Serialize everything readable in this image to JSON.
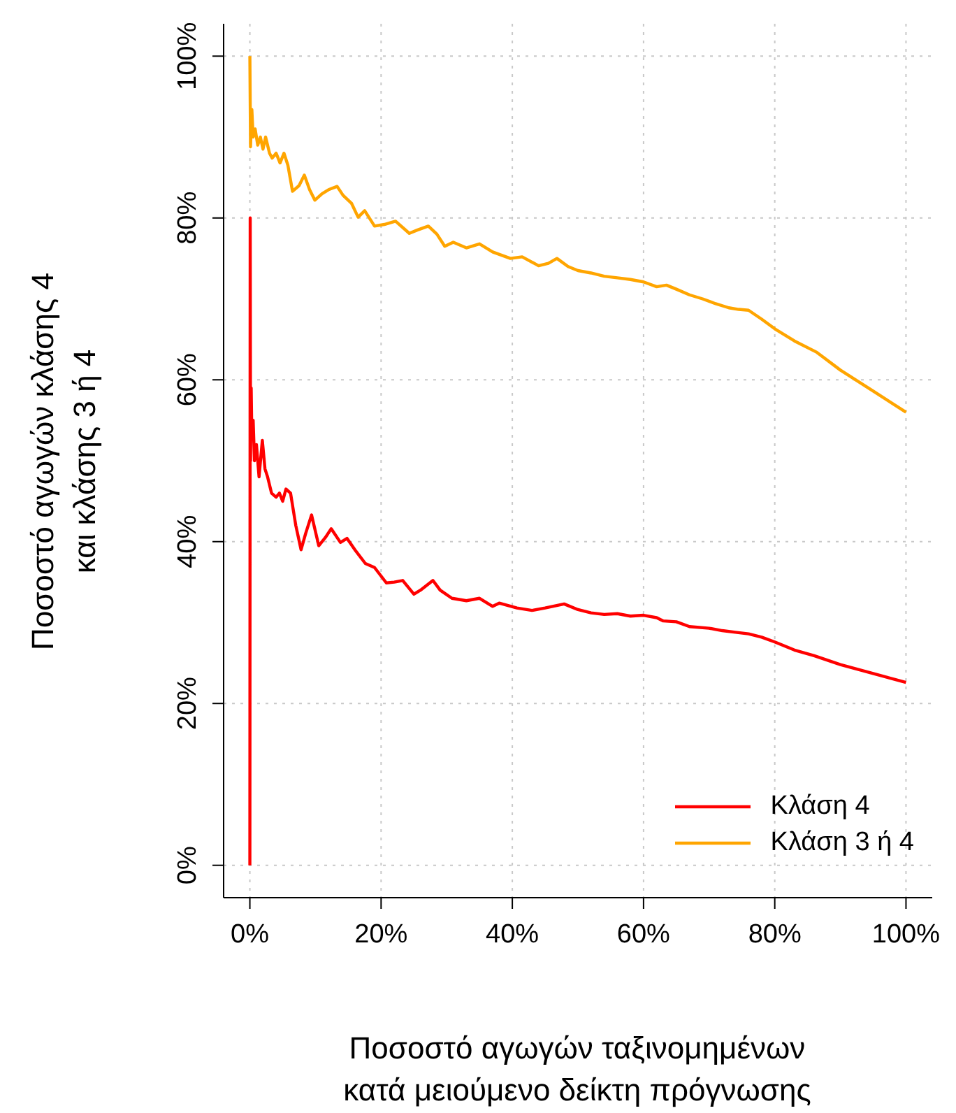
{
  "chart_data": {
    "type": "line",
    "xlabel": "Ποσοστό αγωγών ταξινομημένων\nκατά μειούμενο δείκτη πρόγνωσης",
    "ylabel": "Ποσοστό αγωγών κλάσης 4\nκαι κλάσης 3 ή 4",
    "xlim": [
      -4,
      104
    ],
    "ylim": [
      -4,
      104
    ],
    "xticks": [
      {
        "value": 0,
        "label": "0%"
      },
      {
        "value": 20,
        "label": "20%"
      },
      {
        "value": 40,
        "label": "40%"
      },
      {
        "value": 60,
        "label": "60%"
      },
      {
        "value": 80,
        "label": "80%"
      },
      {
        "value": 100,
        "label": "100%"
      }
    ],
    "yticks": [
      {
        "value": 0,
        "label": "0%"
      },
      {
        "value": 20,
        "label": "20%"
      },
      {
        "value": 40,
        "label": "40%"
      },
      {
        "value": 60,
        "label": "60%"
      },
      {
        "value": 80,
        "label": "80%"
      },
      {
        "value": 100,
        "label": "100%"
      }
    ],
    "grid": true,
    "legend": "bottom right",
    "line_style": "solid",
    "marker": "none",
    "series": [
      {
        "name": "Κλάση 4",
        "color": "#ff0000",
        "x": [
          0,
          0.05,
          0.1,
          0.2,
          0.3,
          0.5,
          0.7,
          1,
          1.4,
          1.9,
          2.3,
          2.7,
          3.3,
          4,
          4.5,
          5,
          5.5,
          6.2,
          7,
          7.8,
          8.5,
          9.4,
          10.5,
          11.5,
          12.4,
          13.8,
          14.8,
          16,
          17.6,
          19,
          20.8,
          22,
          23.3,
          25,
          26,
          27.9,
          29,
          30.8,
          33,
          35,
          37,
          38,
          40.7,
          43,
          45,
          47.9,
          50,
          52,
          54,
          56,
          58,
          60,
          62,
          63,
          65,
          67,
          70,
          72,
          74,
          76,
          78,
          80,
          83,
          86,
          90,
          95,
          100
        ],
        "values": [
          0,
          80,
          50,
          59,
          53,
          55,
          50,
          52,
          48,
          52.5,
          49,
          48,
          46,
          45.5,
          46,
          45,
          46.5,
          46,
          42,
          39,
          41,
          43.3,
          39.5,
          40.5,
          41.6,
          39.9,
          40.4,
          39,
          37.3,
          36.8,
          34.9,
          35,
          35.2,
          33.5,
          34,
          35.2,
          34,
          33,
          32.7,
          33,
          32,
          32.4,
          31.8,
          31.5,
          31.8,
          32.3,
          31.6,
          31.2,
          31,
          31.1,
          30.8,
          30.9,
          30.6,
          30.2,
          30.1,
          29.5,
          29.3,
          29,
          28.8,
          28.6,
          28.2,
          27.6,
          26.6,
          25.9,
          24.8,
          23.7,
          22.6
        ]
      },
      {
        "name": "Κλάση 3 ή 4",
        "color": "#ffa500",
        "x": [
          0,
          0.1,
          0.3,
          0.5,
          0.8,
          1.2,
          1.6,
          2,
          2.4,
          3,
          3.4,
          4,
          4.6,
          5.2,
          5.8,
          6.5,
          7.5,
          8.3,
          9.1,
          9.9,
          11,
          12,
          13.3,
          14.2,
          15.5,
          16.5,
          17.5,
          19,
          20.5,
          22.2,
          24.3,
          25.5,
          27.2,
          28.5,
          29.7,
          31,
          33,
          35,
          37,
          39.7,
          41.5,
          44,
          45.5,
          46.8,
          48.5,
          50,
          52,
          54,
          56,
          58,
          60,
          62,
          63.5,
          65,
          67,
          69,
          71,
          73,
          74.5,
          76,
          78,
          80,
          83,
          86.4,
          90,
          95,
          100
        ],
        "values": [
          100,
          88.8,
          93.4,
          90,
          91,
          89,
          90,
          88.5,
          90,
          88,
          87.4,
          88,
          86.8,
          88,
          86.5,
          83.3,
          84,
          85.3,
          83.5,
          82.2,
          83,
          83.5,
          83.9,
          82.8,
          81.8,
          80.1,
          80.9,
          79,
          79.2,
          79.6,
          78.1,
          78.5,
          79,
          78,
          76.5,
          77,
          76.3,
          76.8,
          75.8,
          75,
          75.2,
          74.1,
          74.4,
          75,
          74,
          73.5,
          73.2,
          72.8,
          72.6,
          72.4,
          72.1,
          71.5,
          71.7,
          71.2,
          70.5,
          70,
          69.4,
          68.9,
          68.7,
          68.6,
          67.5,
          66.3,
          64.8,
          63.4,
          61.2,
          58.6,
          56
        ]
      }
    ]
  }
}
